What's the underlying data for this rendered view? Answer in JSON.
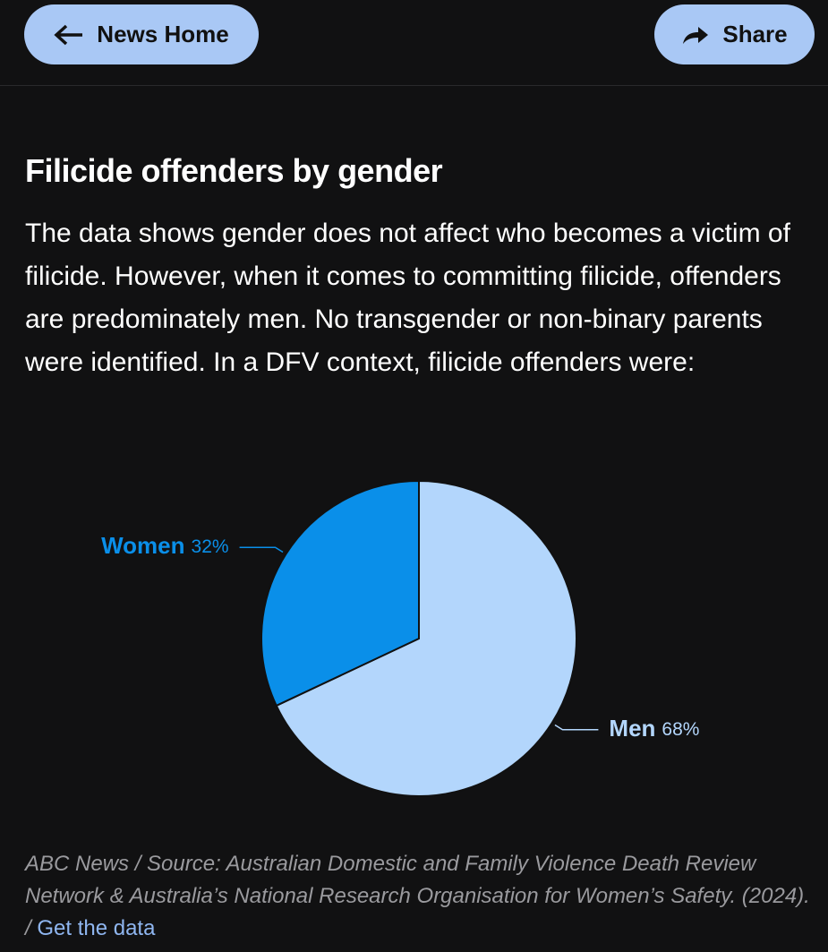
{
  "nav": {
    "back": "News Home",
    "share": "Share"
  },
  "chart_data": {
    "type": "pie",
    "title": "Filicide offenders by gender",
    "subtitle": "The data shows gender does not affect who becomes a victim of filicide. However, when it comes to committing filicide, offenders are predominately men. No transgender or non-binary parents were identified. In a DFV context, filicide offenders were:",
    "categories": [
      "Men",
      "Women"
    ],
    "values": [
      68,
      32
    ],
    "value_labels": [
      "68%",
      "32%"
    ],
    "colors": [
      "#b3d6fc",
      "#0a8fe9"
    ]
  },
  "source": {
    "text": "ABC News / Source: Australian Domestic and Family Violence Death Review Network & Australia’s National Research Organisation for Women’s Safety. (2024). /",
    "link": "Get the data"
  }
}
